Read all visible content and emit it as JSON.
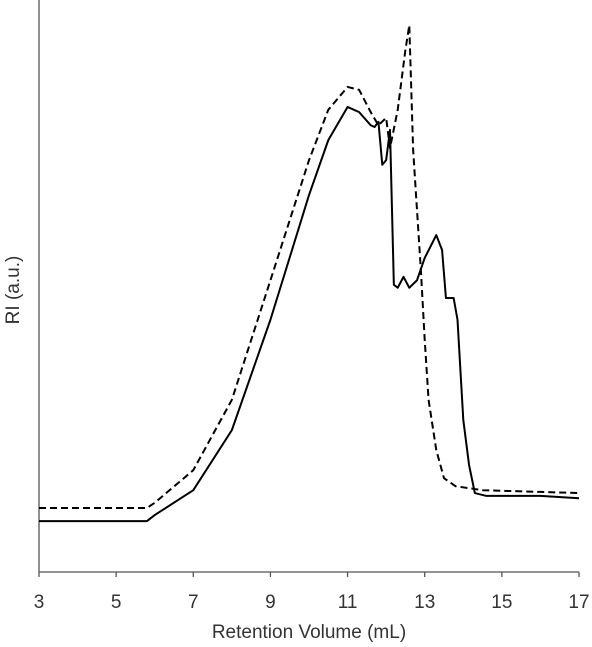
{
  "chart_data": {
    "type": "line",
    "x_label": "Retention Volume (mL)",
    "y_label": "RI (a.u.)",
    "xlim": [
      3,
      17
    ],
    "xticks": [
      3,
      5,
      7,
      9,
      11,
      13,
      15,
      17
    ],
    "ylim": [
      0,
      100
    ],
    "series": [
      {
        "color": "#000000",
        "dashed": false,
        "x": [
          3,
          5.8,
          6,
          7,
          8,
          9,
          10,
          10.5,
          11,
          11.3,
          11.6,
          11.7,
          11.8,
          11.9,
          12.0,
          12.1,
          12.2,
          12.3,
          12.45,
          12.6,
          12.8,
          13.0,
          13.3,
          13.45,
          13.55,
          13.75,
          13.85,
          14.0,
          14.15,
          14.3,
          14.6,
          15,
          16,
          17
        ],
        "values": [
          8.9,
          8.9,
          9.95,
          14.3,
          24.8,
          44.1,
          65.9,
          75.5,
          81.3,
          80.4,
          78.1,
          77.8,
          78.7,
          71.2,
          72.0,
          77.3,
          50.2,
          49.7,
          51.6,
          49.7,
          51.0,
          54.9,
          58.9,
          56.3,
          47.9,
          47.9,
          44.1,
          26.6,
          18.7,
          13.8,
          13.3,
          13.3,
          13.3,
          12.9
        ]
      },
      {
        "color": "#000000",
        "dashed": true,
        "x": [
          3,
          5.8,
          6,
          7,
          8,
          9,
          10,
          10.5,
          11,
          11.3,
          11.6,
          11.8,
          12.0,
          12.1,
          12.3,
          12.5,
          12.6,
          12.7,
          12.9,
          13.0,
          13.1,
          13.3,
          13.5,
          13.8,
          14.5,
          15,
          16,
          17
        ],
        "values": [
          11.2,
          11.2,
          12.1,
          17.8,
          30.1,
          51.0,
          72.0,
          80.8,
          84.8,
          84.3,
          80.4,
          78.1,
          79.4,
          74.1,
          80.8,
          91.3,
          95.6,
          73.8,
          52.8,
          40.6,
          30.1,
          21.3,
          16.4,
          15.0,
          14.3,
          14.2,
          14.0,
          13.8
        ]
      }
    ]
  }
}
